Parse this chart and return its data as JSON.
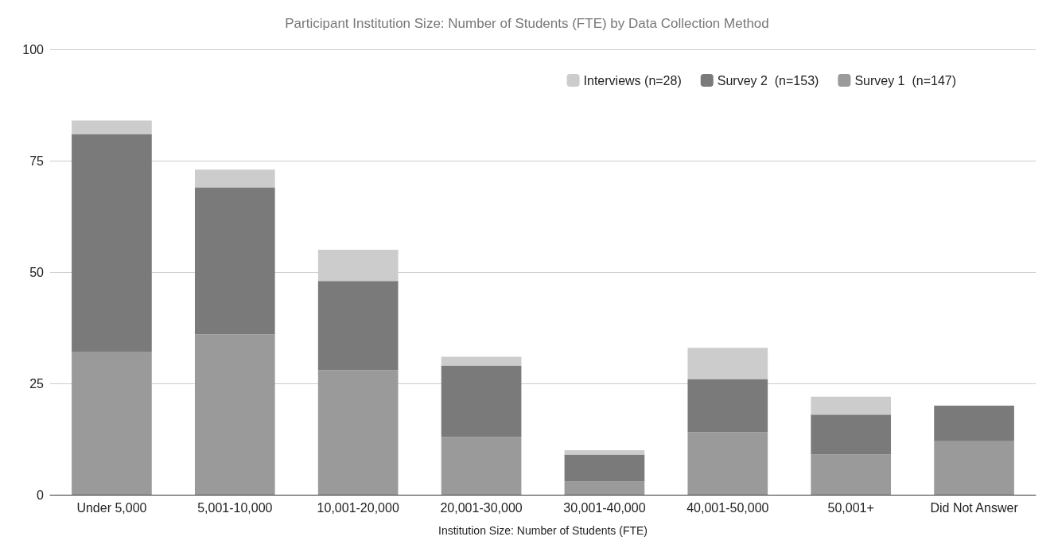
{
  "chart_data": {
    "type": "bar",
    "stacked": true,
    "title": "Participant Institution Size: Number of Students (FTE) by Data Collection Method",
    "xlabel": "Institution Size: Number of Students (FTE)",
    "categories": [
      "Under 5,000",
      "5,001-10,000",
      "10,001-20,000",
      "20,001-30,000",
      "30,001-40,000",
      "40,001-50,000",
      "50,001+",
      "Did Not Answer"
    ],
    "series": [
      {
        "name": "Survey 1  (n=147)",
        "color": "#9a9a9a",
        "values": [
          32,
          36,
          28,
          13,
          3,
          14,
          9,
          12
        ]
      },
      {
        "name": "Survey 2  (n=153)",
        "color": "#7a7a7a",
        "values": [
          49,
          33,
          20,
          16,
          6,
          12,
          9,
          8
        ]
      },
      {
        "name": "Interviews (n=28)",
        "color": "#cccccc",
        "values": [
          3,
          4,
          7,
          2,
          1,
          7,
          4,
          0
        ]
      }
    ],
    "ylim": [
      0,
      100
    ],
    "yticks": [
      0,
      25,
      50,
      75,
      100
    ],
    "grid": "y",
    "legend": "top right"
  }
}
